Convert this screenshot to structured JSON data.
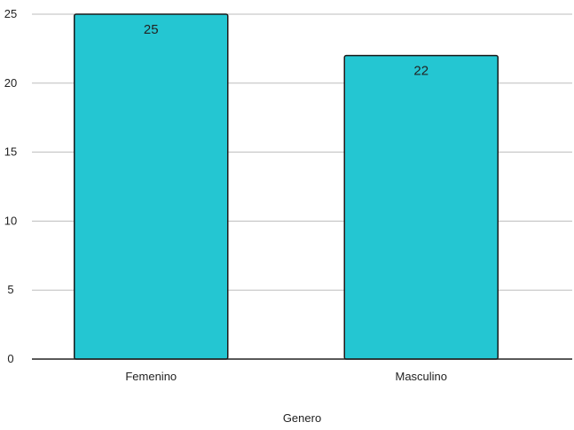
{
  "chart_data": {
    "type": "bar",
    "title": "",
    "xlabel": "Genero",
    "ylabel": "",
    "categories": [
      "Femenino",
      "Masculino"
    ],
    "series": [
      {
        "values": [
          25,
          22
        ]
      }
    ],
    "data_labels": [
      "25",
      "22"
    ],
    "ylim": [
      0,
      25
    ],
    "yticks": [
      0,
      5,
      10,
      15,
      20,
      25
    ],
    "ytick_labels": [
      "0",
      "5",
      "10",
      "15",
      "20",
      "25"
    ],
    "grid": true,
    "legend": "none",
    "colors": {
      "bar_fill": "#24c6d2",
      "bar_stroke": "#1a1a1a",
      "grid": "#bdbdbd",
      "baseline": "#222222"
    }
  }
}
